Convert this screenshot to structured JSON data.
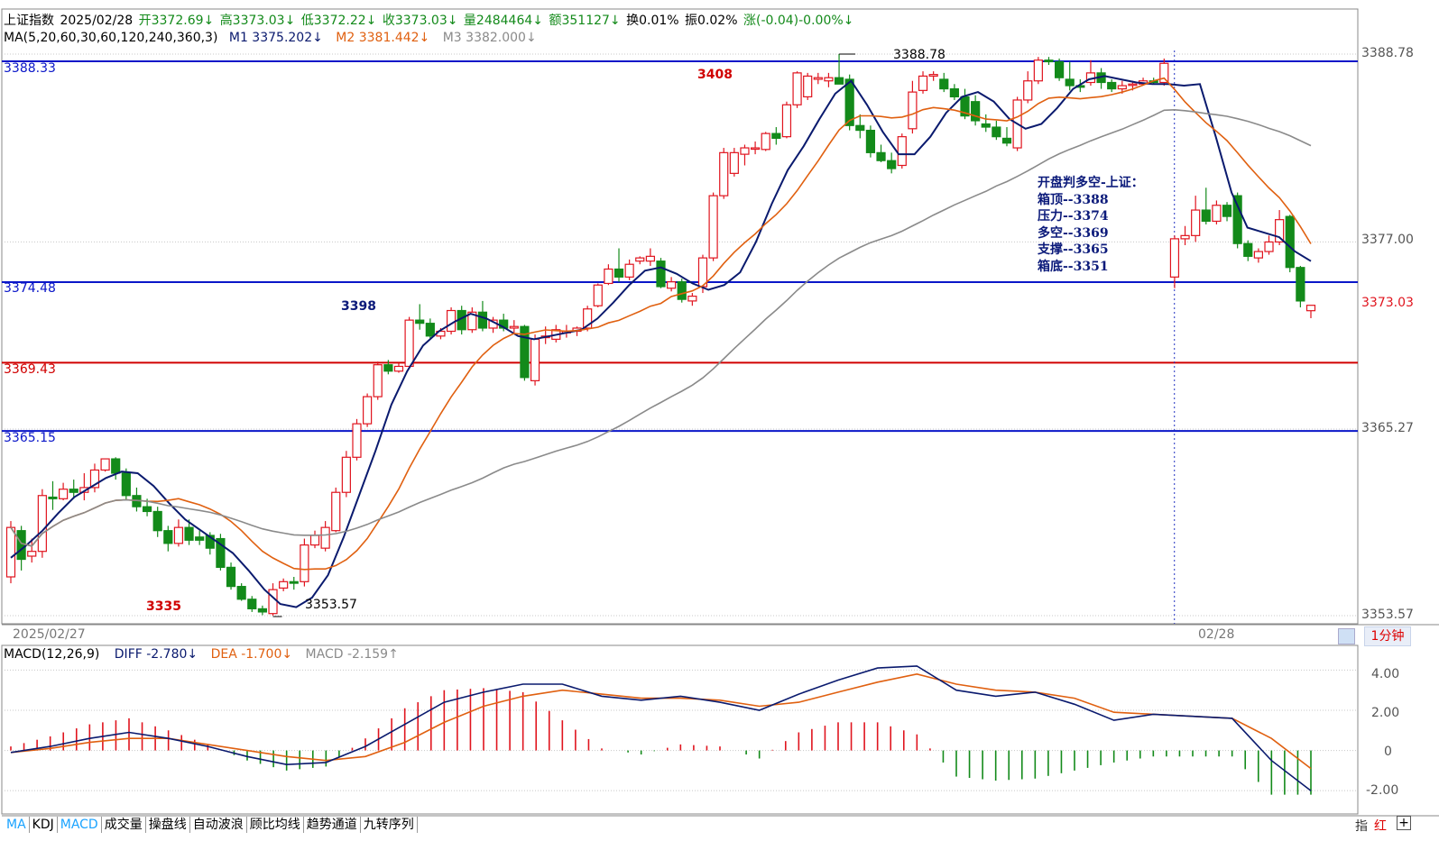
{
  "header": {
    "name": "上证指数",
    "date": "2025/02/28",
    "open": "开3372.69↓",
    "high": "高3373.03↓",
    "low": "低3372.22↓",
    "close": "收3373.03↓",
    "volume": "量2484464↓",
    "amount": "额351127↓",
    "turnover": "换0.01%",
    "amplitude": "振0.02%",
    "change": "涨(-0.04)-0.00%↓"
  },
  "ma_legend": {
    "params": "MA(5,20,60,30,60,120,240,360,3)",
    "m1": "M1 3375.202↓",
    "m2": "M2 3381.442↓",
    "m3": "M3 3382.000↓"
  },
  "hlines": [
    {
      "label": "3388.33",
      "value": 3388.33,
      "color": "#0a16c8"
    },
    {
      "label": "3374.48",
      "value": 3374.48,
      "color": "#0a16c8"
    },
    {
      "label": "3369.43",
      "value": 3369.43,
      "color": "#d00000"
    },
    {
      "label": "3365.15",
      "value": 3365.15,
      "color": "#0a16c8"
    }
  ],
  "y_axis_labels": [
    "3388.78",
    "3377.00",
    "3373.03",
    "3365.27",
    "3353.57"
  ],
  "annotations": {
    "a3408": "3408",
    "a3398": "3398",
    "a3335": "3335",
    "high_mark": "3388.78",
    "low_mark": "3353.57"
  },
  "note": {
    "title": "开盘判多空-上证：",
    "lines": [
      "箱顶--3388",
      "压力--3374",
      "多空--3369",
      "支撑--3365",
      "箱底--3351"
    ]
  },
  "x_labels": {
    "left": "2025/02/27",
    "right": "02/28"
  },
  "period_button": "1分钟",
  "macd_legend": {
    "params": "MACD(12,26,9)",
    "diff": "DIFF -2.780↓",
    "dea": "DEA -1.700↓",
    "macd": "MACD -2.159↑"
  },
  "macd_axis_labels": [
    "4.00",
    "2.00",
    "0",
    "-2.00"
  ],
  "tabs": [
    "MA",
    "KDJ",
    "MACD",
    "成交量",
    "操盘线",
    "自动波浪",
    "顾比均线",
    "趋势通道",
    "九转序列"
  ],
  "bottom_right": [
    "指",
    "红"
  ],
  "colors": {
    "up": "#e0141e",
    "down": "#138a1a",
    "m1": "#0a1a6e",
    "m2": "#e06010",
    "m3": "#8a8a8a",
    "grid": "#c8c8c8"
  },
  "chart_data": {
    "type": "candlestick",
    "ylim": [
      3353.57,
      3388.78
    ],
    "candles": [
      {
        "o": 3356.0,
        "h": 3359.5,
        "l": 3355.6,
        "c": 3359.1
      },
      {
        "o": 3358.9,
        "h": 3359.2,
        "l": 3356.4,
        "c": 3357.1
      },
      {
        "o": 3357.3,
        "h": 3358.4,
        "l": 3356.9,
        "c": 3357.6
      },
      {
        "o": 3357.6,
        "h": 3361.5,
        "l": 3357.2,
        "c": 3361.1
      },
      {
        "o": 3361.0,
        "h": 3362.0,
        "l": 3360.2,
        "c": 3360.9
      },
      {
        "o": 3360.9,
        "h": 3361.9,
        "l": 3360.8,
        "c": 3361.5
      },
      {
        "o": 3361.5,
        "h": 3362.1,
        "l": 3360.9,
        "c": 3361.3
      },
      {
        "o": 3361.3,
        "h": 3362.5,
        "l": 3360.8,
        "c": 3361.6
      },
      {
        "o": 3361.6,
        "h": 3363.1,
        "l": 3361.3,
        "c": 3362.7
      },
      {
        "o": 3362.7,
        "h": 3363.4,
        "l": 3362.6,
        "c": 3363.4
      },
      {
        "o": 3363.4,
        "h": 3363.5,
        "l": 3362.1,
        "c": 3362.5
      },
      {
        "o": 3362.5,
        "h": 3362.8,
        "l": 3360.8,
        "c": 3361.1
      },
      {
        "o": 3361.1,
        "h": 3361.6,
        "l": 3360.1,
        "c": 3360.4
      },
      {
        "o": 3360.4,
        "h": 3360.9,
        "l": 3359.8,
        "c": 3360.1
      },
      {
        "o": 3360.1,
        "h": 3360.4,
        "l": 3358.5,
        "c": 3358.9
      },
      {
        "o": 3358.9,
        "h": 3359.2,
        "l": 3357.6,
        "c": 3358.1
      },
      {
        "o": 3358.1,
        "h": 3359.6,
        "l": 3357.9,
        "c": 3359.1
      },
      {
        "o": 3359.1,
        "h": 3359.6,
        "l": 3358.0,
        "c": 3358.3
      },
      {
        "o": 3358.5,
        "h": 3358.9,
        "l": 3358.0,
        "c": 3358.3
      },
      {
        "o": 3358.6,
        "h": 3358.8,
        "l": 3357.4,
        "c": 3357.8
      },
      {
        "o": 3358.4,
        "h": 3358.7,
        "l": 3356.4,
        "c": 3356.6
      },
      {
        "o": 3356.6,
        "h": 3356.9,
        "l": 3355.2,
        "c": 3355.4
      },
      {
        "o": 3355.4,
        "h": 3355.6,
        "l": 3354.5,
        "c": 3354.6
      },
      {
        "o": 3354.6,
        "h": 3354.8,
        "l": 3353.8,
        "c": 3354.0
      },
      {
        "o": 3354.0,
        "h": 3354.2,
        "l": 3353.6,
        "c": 3353.8
      },
      {
        "o": 3353.7,
        "h": 3355.6,
        "l": 3353.57,
        "c": 3355.2
      },
      {
        "o": 3355.3,
        "h": 3355.9,
        "l": 3355.1,
        "c": 3355.7
      },
      {
        "o": 3355.7,
        "h": 3356.0,
        "l": 3355.2,
        "c": 3355.6
      },
      {
        "o": 3355.7,
        "h": 3358.4,
        "l": 3355.4,
        "c": 3358.0
      },
      {
        "o": 3358.0,
        "h": 3358.9,
        "l": 3357.8,
        "c": 3358.6
      },
      {
        "o": 3357.8,
        "h": 3359.5,
        "l": 3357.6,
        "c": 3359.1
      },
      {
        "o": 3358.9,
        "h": 3361.6,
        "l": 3358.8,
        "c": 3361.3
      },
      {
        "o": 3361.3,
        "h": 3363.9,
        "l": 3361.0,
        "c": 3363.5
      },
      {
        "o": 3363.5,
        "h": 3365.9,
        "l": 3363.3,
        "c": 3365.6
      },
      {
        "o": 3365.6,
        "h": 3367.5,
        "l": 3365.4,
        "c": 3367.3
      },
      {
        "o": 3367.3,
        "h": 3369.5,
        "l": 3367.1,
        "c": 3369.3
      },
      {
        "o": 3369.3,
        "h": 3369.6,
        "l": 3368.7,
        "c": 3368.9
      },
      {
        "o": 3368.9,
        "h": 3369.4,
        "l": 3368.8,
        "c": 3369.2
      },
      {
        "o": 3369.2,
        "h": 3372.3,
        "l": 3369.1,
        "c": 3372.1
      },
      {
        "o": 3372.1,
        "h": 3373.1,
        "l": 3371.5,
        "c": 3371.9
      },
      {
        "o": 3371.9,
        "h": 3372.2,
        "l": 3370.9,
        "c": 3371.1
      },
      {
        "o": 3371.1,
        "h": 3371.6,
        "l": 3370.9,
        "c": 3371.4
      },
      {
        "o": 3371.4,
        "h": 3372.9,
        "l": 3371.2,
        "c": 3372.7
      },
      {
        "o": 3372.7,
        "h": 3373.0,
        "l": 3371.2,
        "c": 3371.5
      },
      {
        "o": 3371.5,
        "h": 3372.9,
        "l": 3371.3,
        "c": 3372.6
      },
      {
        "o": 3372.6,
        "h": 3373.3,
        "l": 3371.4,
        "c": 3371.6
      },
      {
        "o": 3371.6,
        "h": 3372.3,
        "l": 3371.3,
        "c": 3372.1
      },
      {
        "o": 3372.1,
        "h": 3372.5,
        "l": 3371.4,
        "c": 3371.6
      },
      {
        "o": 3371.6,
        "h": 3372.1,
        "l": 3371.3,
        "c": 3371.7
      },
      {
        "o": 3371.7,
        "h": 3371.8,
        "l": 3368.3,
        "c": 3368.5
      },
      {
        "o": 3368.3,
        "h": 3371.2,
        "l": 3368.0,
        "c": 3370.9
      },
      {
        "o": 3371.0,
        "h": 3371.7,
        "l": 3370.6,
        "c": 3371.1
      },
      {
        "o": 3370.9,
        "h": 3371.8,
        "l": 3370.7,
        "c": 3371.5
      },
      {
        "o": 3371.3,
        "h": 3371.8,
        "l": 3371.0,
        "c": 3371.4
      },
      {
        "o": 3371.4,
        "h": 3371.7,
        "l": 3371.1,
        "c": 3371.6
      },
      {
        "o": 3371.6,
        "h": 3373.0,
        "l": 3371.4,
        "c": 3372.8
      },
      {
        "o": 3373.0,
        "h": 3374.4,
        "l": 3372.9,
        "c": 3374.3
      },
      {
        "o": 3374.4,
        "h": 3375.6,
        "l": 3374.3,
        "c": 3375.3
      },
      {
        "o": 3375.3,
        "h": 3376.6,
        "l": 3374.5,
        "c": 3374.8
      },
      {
        "o": 3374.8,
        "h": 3375.9,
        "l": 3374.6,
        "c": 3375.6
      },
      {
        "o": 3375.8,
        "h": 3376.1,
        "l": 3375.6,
        "c": 3376.0
      },
      {
        "o": 3375.8,
        "h": 3376.6,
        "l": 3375.5,
        "c": 3376.1
      },
      {
        "o": 3375.8,
        "h": 3376.0,
        "l": 3374.1,
        "c": 3374.2
      },
      {
        "o": 3374.1,
        "h": 3374.8,
        "l": 3373.9,
        "c": 3374.5
      },
      {
        "o": 3374.5,
        "h": 3374.7,
        "l": 3373.2,
        "c": 3373.4
      },
      {
        "o": 3373.3,
        "h": 3373.8,
        "l": 3373.0,
        "c": 3373.6
      },
      {
        "o": 3374.2,
        "h": 3376.2,
        "l": 3373.8,
        "c": 3376.0
      },
      {
        "o": 3376.0,
        "h": 3380.1,
        "l": 3375.8,
        "c": 3379.9
      },
      {
        "o": 3379.9,
        "h": 3382.9,
        "l": 3379.7,
        "c": 3382.6
      },
      {
        "o": 3381.3,
        "h": 3382.9,
        "l": 3381.1,
        "c": 3382.6
      },
      {
        "o": 3382.5,
        "h": 3383.1,
        "l": 3381.8,
        "c": 3382.9
      },
      {
        "o": 3382.9,
        "h": 3383.3,
        "l": 3382.5,
        "c": 3382.9
      },
      {
        "o": 3382.8,
        "h": 3383.9,
        "l": 3382.7,
        "c": 3383.8
      },
      {
        "o": 3383.8,
        "h": 3384.2,
        "l": 3383.1,
        "c": 3383.5
      },
      {
        "o": 3383.6,
        "h": 3385.8,
        "l": 3383.5,
        "c": 3385.6
      },
      {
        "o": 3385.6,
        "h": 3387.7,
        "l": 3385.4,
        "c": 3387.6
      },
      {
        "o": 3386.1,
        "h": 3387.6,
        "l": 3385.9,
        "c": 3387.4
      },
      {
        "o": 3387.2,
        "h": 3387.6,
        "l": 3386.9,
        "c": 3387.3
      },
      {
        "o": 3387.1,
        "h": 3387.6,
        "l": 3386.7,
        "c": 3387.3
      },
      {
        "o": 3387.3,
        "h": 3388.78,
        "l": 3386.9,
        "c": 3386.9
      },
      {
        "o": 3387.2,
        "h": 3387.5,
        "l": 3384.0,
        "c": 3384.3
      },
      {
        "o": 3384.3,
        "h": 3385.0,
        "l": 3383.5,
        "c": 3384.0
      },
      {
        "o": 3384.0,
        "h": 3384.3,
        "l": 3382.3,
        "c": 3382.6
      },
      {
        "o": 3382.6,
        "h": 3383.1,
        "l": 3382.0,
        "c": 3382.1
      },
      {
        "o": 3382.1,
        "h": 3382.6,
        "l": 3381.3,
        "c": 3381.6
      },
      {
        "o": 3381.8,
        "h": 3383.8,
        "l": 3381.6,
        "c": 3383.6
      },
      {
        "o": 3384.1,
        "h": 3387.1,
        "l": 3383.8,
        "c": 3386.4
      },
      {
        "o": 3386.5,
        "h": 3387.7,
        "l": 3386.3,
        "c": 3387.4
      },
      {
        "o": 3387.4,
        "h": 3387.7,
        "l": 3387.1,
        "c": 3387.5
      },
      {
        "o": 3387.2,
        "h": 3387.6,
        "l": 3386.4,
        "c": 3386.6
      },
      {
        "o": 3386.6,
        "h": 3386.9,
        "l": 3385.9,
        "c": 3386.1
      },
      {
        "o": 3386.1,
        "h": 3386.6,
        "l": 3384.7,
        "c": 3384.9
      },
      {
        "o": 3385.8,
        "h": 3386.2,
        "l": 3384.3,
        "c": 3384.6
      },
      {
        "o": 3384.4,
        "h": 3385.0,
        "l": 3383.9,
        "c": 3384.2
      },
      {
        "o": 3384.2,
        "h": 3384.6,
        "l": 3383.4,
        "c": 3383.6
      },
      {
        "o": 3383.5,
        "h": 3384.2,
        "l": 3383.0,
        "c": 3383.2
      },
      {
        "o": 3382.9,
        "h": 3386.1,
        "l": 3382.7,
        "c": 3385.9
      },
      {
        "o": 3385.9,
        "h": 3387.7,
        "l": 3385.7,
        "c": 3387.1
      },
      {
        "o": 3387.1,
        "h": 3388.6,
        "l": 3386.9,
        "c": 3388.4
      },
      {
        "o": 3388.4,
        "h": 3388.6,
        "l": 3388.1,
        "c": 3388.3
      },
      {
        "o": 3388.3,
        "h": 3388.5,
        "l": 3387.1,
        "c": 3387.3
      },
      {
        "o": 3387.2,
        "h": 3388.3,
        "l": 3386.5,
        "c": 3386.8
      },
      {
        "o": 3386.8,
        "h": 3387.2,
        "l": 3386.4,
        "c": 3386.7
      },
      {
        "o": 3387.0,
        "h": 3388.4,
        "l": 3386.8,
        "c": 3387.6
      },
      {
        "o": 3387.6,
        "h": 3387.9,
        "l": 3386.6,
        "c": 3387.0
      },
      {
        "o": 3387.0,
        "h": 3387.2,
        "l": 3386.4,
        "c": 3386.6
      },
      {
        "o": 3386.6,
        "h": 3387.1,
        "l": 3386.3,
        "c": 3386.8
      },
      {
        "o": 3386.9,
        "h": 3387.1,
        "l": 3386.5,
        "c": 3386.9
      },
      {
        "o": 3386.9,
        "h": 3387.3,
        "l": 3386.8,
        "c": 3387.1
      },
      {
        "o": 3387.1,
        "h": 3387.3,
        "l": 3386.9,
        "c": 3387.0
      },
      {
        "o": 3387.0,
        "h": 3388.5,
        "l": 3386.8,
        "c": 3388.2
      },
      {
        "o": 3374.8,
        "h": 3377.4,
        "l": 3374.1,
        "c": 3377.2
      },
      {
        "o": 3377.2,
        "h": 3378.0,
        "l": 3376.8,
        "c": 3377.4
      },
      {
        "o": 3377.4,
        "h": 3379.9,
        "l": 3377.0,
        "c": 3379.0
      },
      {
        "o": 3379.0,
        "h": 3380.4,
        "l": 3378.1,
        "c": 3378.3
      },
      {
        "o": 3378.3,
        "h": 3379.6,
        "l": 3378.1,
        "c": 3379.3
      },
      {
        "o": 3379.3,
        "h": 3379.5,
        "l": 3378.3,
        "c": 3378.6
      },
      {
        "o": 3379.9,
        "h": 3380.1,
        "l": 3376.6,
        "c": 3376.9
      },
      {
        "o": 3376.9,
        "h": 3377.1,
        "l": 3375.8,
        "c": 3376.1
      },
      {
        "o": 3376.0,
        "h": 3376.6,
        "l": 3375.7,
        "c": 3376.4
      },
      {
        "o": 3376.4,
        "h": 3377.4,
        "l": 3376.2,
        "c": 3377.0
      },
      {
        "o": 3377.0,
        "h": 3379.0,
        "l": 3376.8,
        "c": 3378.4
      },
      {
        "o": 3378.6,
        "h": 3378.7,
        "l": 3375.1,
        "c": 3375.4
      },
      {
        "o": 3375.4,
        "h": 3375.5,
        "l": 3372.9,
        "c": 3373.3
      },
      {
        "o": 3372.69,
        "h": 3373.03,
        "l": 3372.22,
        "c": 3373.03
      }
    ],
    "m1": [
      3357.2,
      3358.0,
      3358.9,
      3360.0,
      3361.0,
      3361.6,
      3362.2,
      3362.6,
      3362.5,
      3361.7,
      3360.6,
      3359.6,
      3358.9,
      3358.2,
      3357.5,
      3356.4,
      3355.2,
      3354.3,
      3354.1,
      3354.7,
      3356.1,
      3358.5,
      3361.2,
      3363.9,
      3366.8,
      3368.9,
      3370.5,
      3371.4,
      3372.0,
      3372.5,
      3372.2,
      3371.7,
      3371.1,
      3370.9,
      3371.1,
      3371.3,
      3371.5,
      3372.2,
      3373.2,
      3374.3,
      3375.2,
      3375.4,
      3375.0,
      3374.4,
      3374.0,
      3374.3,
      3375.1,
      3377.0,
      3379.4,
      3381.5,
      3383.0,
      3384.7,
      3386.3,
      3387.1,
      3385.6,
      3383.9,
      3382.5,
      3382.5,
      3383.6,
      3385.1,
      3386.1,
      3386.4,
      3385.8,
      3384.7,
      3384.1,
      3384.4,
      3385.4,
      3386.6,
      3387.2,
      3387.4,
      3387.2,
      3387.0,
      3386.9,
      3386.9,
      3386.8,
      3386.9,
      3383.6,
      3380.1,
      3377.9,
      3377.6,
      3377.3,
      3376.4,
      3375.8
    ],
    "macd": {
      "ylim": [
        -2.8,
        4.6
      ],
      "diff": [
        -0.1,
        0.2,
        0.6,
        0.9,
        0.6,
        0.2,
        -0.3,
        -0.7,
        -0.6,
        0.2,
        1.3,
        2.4,
        2.9,
        3.3,
        3.3,
        2.7,
        2.5,
        2.7,
        2.4,
        2.0,
        2.8,
        3.5,
        4.1,
        4.2,
        3.0,
        2.7,
        2.9,
        2.3,
        1.5,
        1.8,
        1.7,
        1.6,
        -0.5,
        -2.0
      ],
      "dea": [
        -0.1,
        0.1,
        0.4,
        0.6,
        0.6,
        0.3,
        0.0,
        -0.3,
        -0.5,
        -0.3,
        0.4,
        1.4,
        2.2,
        2.7,
        3.0,
        2.8,
        2.6,
        2.6,
        2.5,
        2.2,
        2.4,
        2.9,
        3.4,
        3.8,
        3.3,
        3.0,
        2.9,
        2.6,
        1.9,
        1.8,
        1.7,
        1.6,
        0.6,
        -0.9
      ],
      "hist": [
        0.2,
        0.7,
        1.3,
        1.6,
        1.0,
        0.3,
        -0.5,
        -1.0,
        -0.8,
        0.6,
        2.1,
        3.0,
        3.1,
        2.9,
        1.5,
        0.1,
        -0.2,
        0.3,
        0.2,
        -0.4,
        0.9,
        1.4,
        1.4,
        0.8,
        -1.3,
        -1.5,
        -1.4,
        -1.0,
        -0.6,
        -0.3,
        -0.3,
        -0.3,
        -2.2,
        -2.2
      ]
    }
  }
}
